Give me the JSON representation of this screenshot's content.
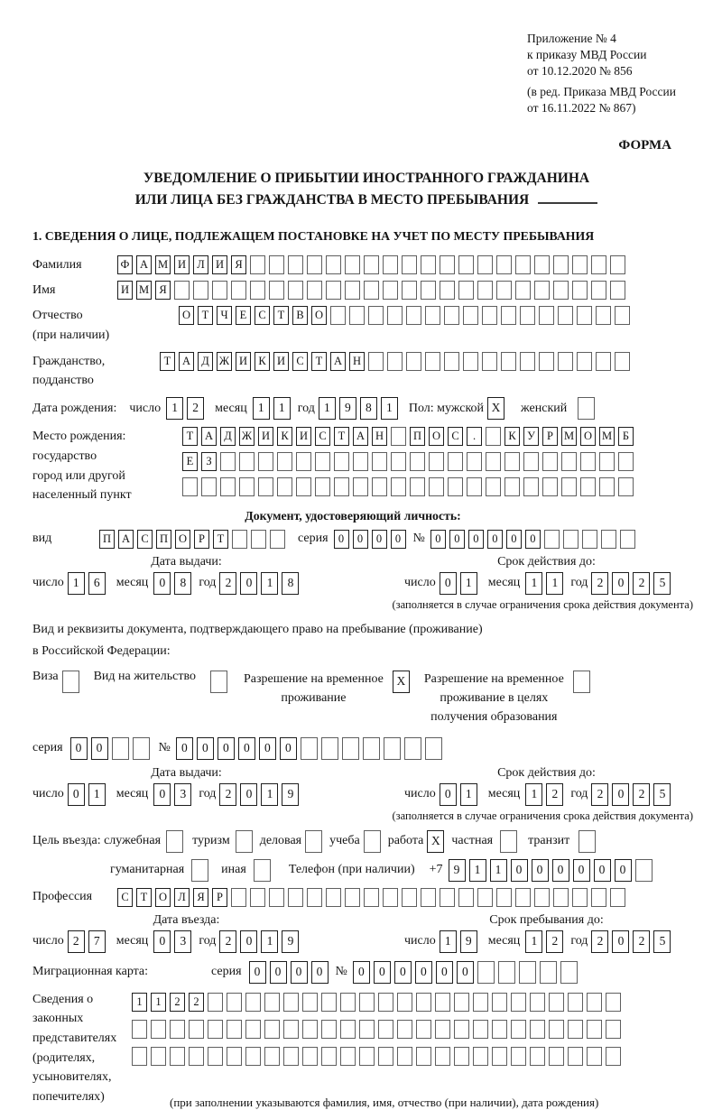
{
  "colors": {
    "ink": "#141414",
    "box_border": "#5f5f5f",
    "box_border_filled": "#1e1e1e"
  },
  "header": {
    "appendix": [
      "Приложение № 4",
      "к приказу МВД России",
      "от 10.12.2020 № 856"
    ],
    "revision": [
      "(в ред. Приказа МВД России",
      "от 16.11.2022 № 867)"
    ],
    "form_label": "ФОРМА"
  },
  "title": {
    "line1": "УВЕДОМЛЕНИЕ О ПРИБЫТИИ ИНОСТРАННОГО ГРАЖДАНИНА",
    "line2": "ИЛИ ЛИЦА БЕЗ ГРАЖДАНСТВА В МЕСТО ПРЕБЫВАНИЯ"
  },
  "section1_heading": "1. СВЕДЕНИЯ О ЛИЦЕ, ПОДЛЕЖАЩЕМ ПОСТАНОВКЕ НА УЧЕТ ПО МЕСТУ ПРЕБЫВАНИЯ",
  "labels": {
    "surname": "Фамилия",
    "name": "Имя",
    "patronymic1": "Отчество",
    "patronymic2": "(при наличии)",
    "citizenship1": "Гражданство,",
    "citizenship2": "подданство",
    "birth_date": "Дата рождения:",
    "day": "число",
    "month": "месяц",
    "year": "год",
    "sex_male": "Пол: мужской",
    "sex_female": "женский",
    "birthplace1": "Место рождения:",
    "birthplace2": "государство",
    "birthplace3": "город или другой",
    "birthplace4": "населенный пункт",
    "identity_doc_heading": "Документ, удостоверяющий личность:",
    "doc_type": "вид",
    "series": "серия",
    "number": "№",
    "issue_date": "Дата выдачи:",
    "expiry_date": "Срок действия до:",
    "expiry_note": "(заполняется в случае ограничения срока действия документа)",
    "residence_doc1": "Вид и реквизиты документа, подтверждающего право на пребывание (проживание)",
    "residence_doc2": "в Российской Федерации:",
    "visa": "Виза",
    "residence_permit": "Вид на жительство",
    "temp_permit1": "Разрешение на временное",
    "temp_permit2": "проживание",
    "temp_edu1": "Разрешение на временное",
    "temp_edu2": "проживание в целях",
    "temp_edu3": "получения образования",
    "purpose": "Цель въезда: служебная",
    "tourism": "туризм",
    "business": "деловая",
    "study": "учеба",
    "work": "работа",
    "private": "частная",
    "transit": "транзит",
    "humanitarian": "гуманитарная",
    "other": "иная",
    "phone": "Телефон (при наличии)",
    "phone_prefix": "+7",
    "profession": "Профессия",
    "entry_date": "Дата въезда:",
    "stay_until": "Срок пребывания до:",
    "migration_card": "Миграционная карта:",
    "representatives1": "Сведения о",
    "representatives2": "законных",
    "representatives3": "представителях",
    "representatives4": "(родителях,",
    "representatives5": "усыновителях,",
    "representatives6": "попечителях)",
    "representatives_note": "(при заполнении указываются фамилия, имя, отчество (при наличии), дата рождения)"
  },
  "fields": {
    "surname": {
      "v": "ФАМИЛИЯ",
      "n": 27
    },
    "name": {
      "v": "ИМЯ",
      "n": 27
    },
    "patronymic": {
      "v": "ОТЧЕСТВО",
      "n": 24
    },
    "citizenship": {
      "v": "ТАДЖИКИСТАН",
      "n": 25
    },
    "birth_day": {
      "v": "12",
      "n": 2
    },
    "birth_month": {
      "v": "11",
      "n": 2
    },
    "birth_year": {
      "v": "1981",
      "n": 4
    },
    "sex_male_check": {
      "v": "X",
      "n": 1
    },
    "sex_female_check": {
      "v": "",
      "n": 1
    },
    "birthplace_row1": {
      "v": "ТАДЖИКИСТАН ПОС. КУРМОМБ",
      "n": 24
    },
    "birthplace_row2": {
      "v": "ЕЗ",
      "n": 24
    },
    "birthplace_row3": {
      "v": "",
      "n": 24
    },
    "doc_type": {
      "v": "ПАСПОРТ",
      "n": 10
    },
    "doc_series": {
      "v": "0000",
      "n": 4
    },
    "doc_number": {
      "v": "000000",
      "n": 11
    },
    "doc_issue_day": {
      "v": "16",
      "n": 2
    },
    "doc_issue_month": {
      "v": "08",
      "n": 2
    },
    "doc_issue_year": {
      "v": "2018",
      "n": 4
    },
    "doc_expiry_day": {
      "v": "01",
      "n": 2
    },
    "doc_expiry_month": {
      "v": "11",
      "n": 2
    },
    "doc_expiry_year": {
      "v": "2025",
      "n": 4
    },
    "visa_check": {
      "v": "",
      "n": 1
    },
    "residence_permit_check": {
      "v": "",
      "n": 1
    },
    "temp_permit_check": {
      "v": "X",
      "n": 1
    },
    "temp_edu_check": {
      "v": "",
      "n": 1
    },
    "permit_series": {
      "v": "00",
      "n": 4
    },
    "permit_number": {
      "v": "000000",
      "n": 13
    },
    "permit_issue_day": {
      "v": "01",
      "n": 2
    },
    "permit_issue_month": {
      "v": "03",
      "n": 2
    },
    "permit_issue_year": {
      "v": "2019",
      "n": 4
    },
    "permit_expiry_day": {
      "v": "01",
      "n": 2
    },
    "permit_expiry_month": {
      "v": "12",
      "n": 2
    },
    "permit_expiry_year": {
      "v": "2025",
      "n": 4
    },
    "purpose_official": {
      "v": "",
      "n": 1
    },
    "purpose_tourism": {
      "v": "",
      "n": 1
    },
    "purpose_business": {
      "v": "",
      "n": 1
    },
    "purpose_study": {
      "v": "",
      "n": 1
    },
    "purpose_work": {
      "v": "X",
      "n": 1
    },
    "purpose_private": {
      "v": "",
      "n": 1
    },
    "purpose_transit": {
      "v": "",
      "n": 1
    },
    "purpose_humanitarian": {
      "v": "",
      "n": 1
    },
    "purpose_other": {
      "v": "",
      "n": 1
    },
    "phone": {
      "v": "911000000",
      "n": 10
    },
    "profession": {
      "v": "СТОЛЯР",
      "n": 27
    },
    "entry_day": {
      "v": "27",
      "n": 2
    },
    "entry_month": {
      "v": "03",
      "n": 2
    },
    "entry_year": {
      "v": "2019",
      "n": 4
    },
    "stay_day": {
      "v": "19",
      "n": 2
    },
    "stay_month": {
      "v": "12",
      "n": 2
    },
    "stay_year": {
      "v": "2025",
      "n": 4
    },
    "migcard_series": {
      "v": "0000",
      "n": 4
    },
    "migcard_number": {
      "v": "000000",
      "n": 11
    },
    "rep_row1": {
      "v": "1122",
      "n": 26
    },
    "rep_row2": {
      "v": "",
      "n": 26
    },
    "rep_row3": {
      "v": "",
      "n": 26
    }
  }
}
